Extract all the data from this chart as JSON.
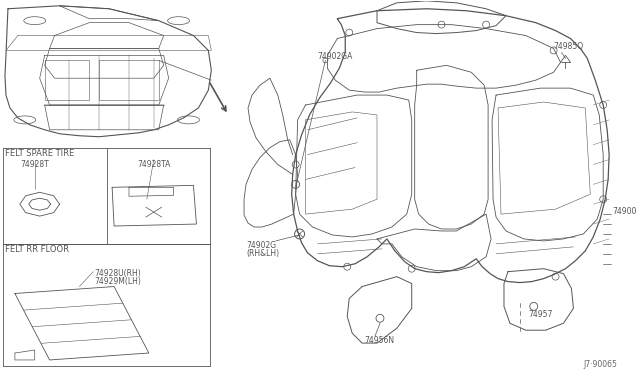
{
  "bg_color": "#ffffff",
  "line_color": "#555555",
  "diagram_ref": "J7·90065",
  "labels": {
    "felt_spare_tire": "FELT SPARE TIRE",
    "felt_rr_floor": "FELT RR FLOOR",
    "p74928T": "74928T",
    "p74928TA": "74928TA",
    "p74928U": "74928U(RH)",
    "p74929M": "74929M(LH)",
    "p74902GA": "74902GA",
    "p74985Q": "74985Q",
    "p74900": "74900",
    "p74902G": "74902G",
    "p74902G2": "(RH&LH)",
    "p74957": "74957",
    "p74956N": "74956N"
  },
  "font_size": 5.5,
  "font_size_hdr": 6.0
}
